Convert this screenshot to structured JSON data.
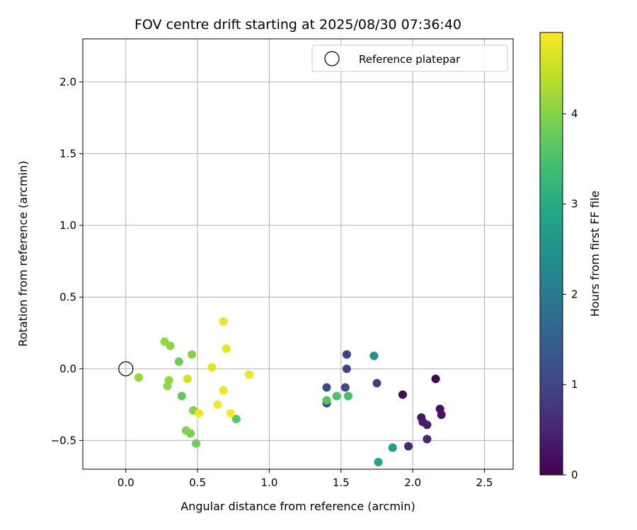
{
  "chart_data": {
    "type": "scatter",
    "title": "FOV centre drift starting at 2025/08/30 07:36:40",
    "xlabel": "Angular distance from reference (arcmin)",
    "ylabel": "Rotation from reference (arcmin)",
    "xlim": [
      -0.3,
      2.7
    ],
    "ylim": [
      -0.7,
      2.3
    ],
    "xticks": [
      0.0,
      0.5,
      1.0,
      1.5,
      2.0,
      2.5
    ],
    "yticks": [
      -0.5,
      0.0,
      0.5,
      1.0,
      1.5,
      2.0
    ],
    "xtick_labels": [
      "0.0",
      "0.5",
      "1.0",
      "1.5",
      "2.0",
      "2.5"
    ],
    "ytick_labels": [
      "−0.5",
      "0.0",
      "0.5",
      "1.0",
      "1.5",
      "2.0"
    ],
    "grid": true,
    "legend": {
      "position": "top-right",
      "entries": [
        {
          "label": "Reference platepar",
          "marker": "open-circle"
        }
      ]
    },
    "reference_point": {
      "x": 0.0,
      "y": 0.0
    },
    "colorbar": {
      "label": "Hours from first FF file",
      "colormap": "viridis",
      "range": [
        0,
        4.9
      ],
      "ticks": [
        0,
        1,
        2,
        3,
        4
      ],
      "tick_labels": [
        "0",
        "1",
        "2",
        "3",
        "4"
      ]
    },
    "points": [
      {
        "x": 2.16,
        "y": -0.07,
        "c": 0.0
      },
      {
        "x": 1.93,
        "y": -0.18,
        "c": 0.1
      },
      {
        "x": 2.19,
        "y": -0.28,
        "c": 0.2
      },
      {
        "x": 2.2,
        "y": -0.32,
        "c": 0.25
      },
      {
        "x": 2.06,
        "y": -0.34,
        "c": 0.3
      },
      {
        "x": 2.07,
        "y": -0.37,
        "c": 0.35
      },
      {
        "x": 2.1,
        "y": -0.39,
        "c": 0.4
      },
      {
        "x": 2.1,
        "y": -0.49,
        "c": 0.5
      },
      {
        "x": 1.97,
        "y": -0.54,
        "c": 0.55
      },
      {
        "x": 1.75,
        "y": -0.1,
        "c": 0.9
      },
      {
        "x": 1.54,
        "y": 0.1,
        "c": 0.95
      },
      {
        "x": 1.54,
        "y": 0.0,
        "c": 1.0
      },
      {
        "x": 1.53,
        "y": -0.13,
        "c": 1.05
      },
      {
        "x": 1.4,
        "y": -0.13,
        "c": 1.1
      },
      {
        "x": 1.4,
        "y": -0.24,
        "c": 1.15
      },
      {
        "x": 1.73,
        "y": 0.09,
        "c": 2.5
      },
      {
        "x": 1.86,
        "y": -0.55,
        "c": 2.7
      },
      {
        "x": 1.76,
        "y": -0.65,
        "c": 2.9
      },
      {
        "x": 1.55,
        "y": -0.19,
        "c": 3.4
      },
      {
        "x": 1.47,
        "y": -0.19,
        "c": 3.5
      },
      {
        "x": 1.4,
        "y": -0.22,
        "c": 3.6
      },
      {
        "x": 0.77,
        "y": -0.35,
        "c": 3.6
      },
      {
        "x": 0.39,
        "y": -0.19,
        "c": 3.7
      },
      {
        "x": 0.37,
        "y": 0.05,
        "c": 3.8
      },
      {
        "x": 0.49,
        "y": -0.52,
        "c": 3.8
      },
      {
        "x": 0.45,
        "y": -0.45,
        "c": 3.9
      },
      {
        "x": 0.42,
        "y": -0.43,
        "c": 3.95
      },
      {
        "x": 0.47,
        "y": -0.29,
        "c": 4.0
      },
      {
        "x": 0.46,
        "y": 0.1,
        "c": 4.0
      },
      {
        "x": 0.31,
        "y": 0.16,
        "c": 4.05
      },
      {
        "x": 0.27,
        "y": 0.19,
        "c": 4.1
      },
      {
        "x": 0.3,
        "y": -0.08,
        "c": 4.1
      },
      {
        "x": 0.29,
        "y": -0.12,
        "c": 4.1
      },
      {
        "x": 0.09,
        "y": -0.06,
        "c": 4.15
      },
      {
        "x": 0.43,
        "y": -0.07,
        "c": 4.6
      },
      {
        "x": 0.6,
        "y": 0.01,
        "c": 4.7
      },
      {
        "x": 0.68,
        "y": 0.33,
        "c": 4.75
      },
      {
        "x": 0.7,
        "y": 0.14,
        "c": 4.75
      },
      {
        "x": 0.86,
        "y": -0.04,
        "c": 4.8
      },
      {
        "x": 0.68,
        "y": -0.15,
        "c": 4.8
      },
      {
        "x": 0.64,
        "y": -0.25,
        "c": 4.85
      },
      {
        "x": 0.51,
        "y": -0.31,
        "c": 4.85
      },
      {
        "x": 0.73,
        "y": -0.31,
        "c": 4.9
      }
    ]
  }
}
